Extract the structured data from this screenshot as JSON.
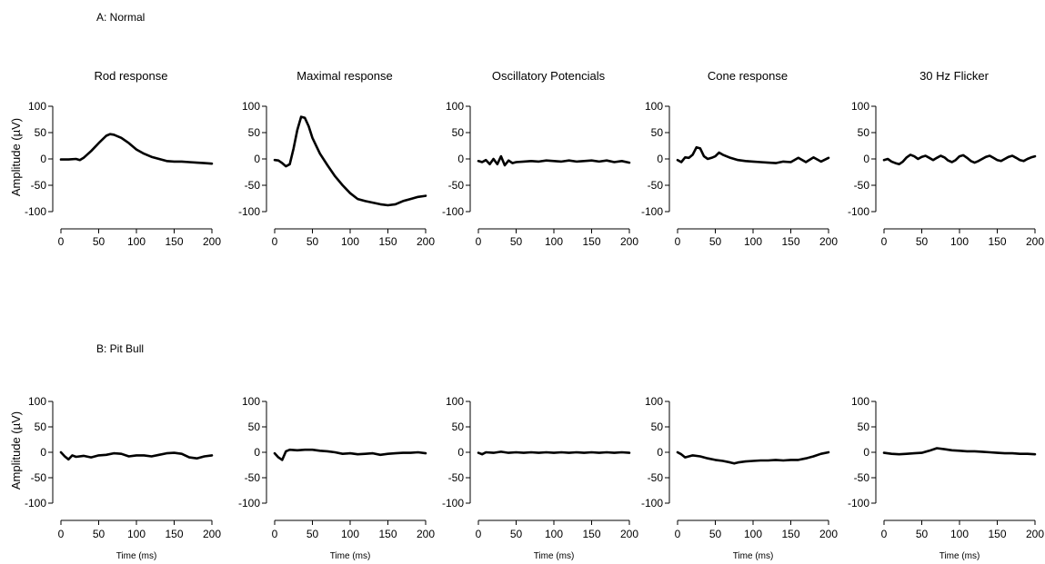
{
  "rows": [
    {
      "label": "A: Normal",
      "show_titles": true,
      "show_xlabel": false
    },
    {
      "label": "B: Pit Bull",
      "show_titles": false,
      "show_xlabel": true
    }
  ],
  "panel_titles": [
    "Rod response",
    "Maximal response",
    "Oscillatory Potencials",
    "Cone response",
    "30 Hz Flicker"
  ],
  "axes": {
    "ylabel": "Amplitude (µV)",
    "xlabel": "Time (ms)",
    "xlim": [
      0,
      200
    ],
    "ylim": [
      -100,
      100
    ],
    "xticks": [
      0,
      50,
      100,
      150,
      200
    ],
    "yticks": [
      100,
      50,
      0,
      -50,
      -100
    ]
  },
  "line_color": "#000000",
  "chart_data": [
    {
      "type": "line",
      "row": "A: Normal",
      "title": "Rod response",
      "x": [
        0,
        10,
        20,
        25,
        30,
        40,
        50,
        60,
        65,
        70,
        80,
        90,
        100,
        110,
        120,
        130,
        140,
        150,
        160,
        170,
        180,
        190,
        200
      ],
      "y": [
        -1,
        -1,
        0,
        -2,
        2,
        15,
        30,
        44,
        47,
        46,
        40,
        30,
        18,
        10,
        4,
        0,
        -4,
        -5,
        -5,
        -6,
        -7,
        -8,
        -9
      ]
    },
    {
      "type": "line",
      "row": "A: Normal",
      "title": "Maximal response",
      "x": [
        0,
        5,
        10,
        15,
        20,
        25,
        30,
        35,
        40,
        45,
        50,
        60,
        70,
        80,
        90,
        100,
        110,
        120,
        130,
        140,
        150,
        160,
        170,
        180,
        190,
        200
      ],
      "y": [
        -2,
        -3,
        -8,
        -14,
        -10,
        20,
        55,
        80,
        78,
        62,
        40,
        10,
        -12,
        -33,
        -50,
        -65,
        -76,
        -80,
        -83,
        -86,
        -88,
        -86,
        -80,
        -76,
        -72,
        -70
      ]
    },
    {
      "type": "line",
      "row": "A: Normal",
      "title": "Oscillatory Potencials",
      "x": [
        0,
        5,
        10,
        15,
        20,
        25,
        30,
        35,
        40,
        45,
        50,
        60,
        70,
        80,
        90,
        100,
        110,
        120,
        130,
        140,
        150,
        160,
        170,
        180,
        190,
        200
      ],
      "y": [
        -4,
        -6,
        -2,
        -10,
        0,
        -10,
        5,
        -12,
        -3,
        -8,
        -6,
        -5,
        -4,
        -5,
        -3,
        -4,
        -5,
        -3,
        -5,
        -4,
        -3,
        -5,
        -3,
        -6,
        -4,
        -7
      ]
    },
    {
      "type": "line",
      "row": "A: Normal",
      "title": "Cone response",
      "x": [
        0,
        5,
        10,
        15,
        20,
        25,
        30,
        35,
        40,
        45,
        50,
        55,
        60,
        70,
        80,
        90,
        100,
        110,
        120,
        130,
        140,
        150,
        160,
        170,
        180,
        190,
        200
      ],
      "y": [
        -2,
        -6,
        3,
        2,
        8,
        22,
        20,
        5,
        0,
        2,
        5,
        12,
        8,
        2,
        -2,
        -4,
        -5,
        -6,
        -7,
        -8,
        -5,
        -6,
        2,
        -6,
        3,
        -5,
        2
      ]
    },
    {
      "type": "line",
      "row": "A: Normal",
      "title": "30 Hz Flicker",
      "x": [
        0,
        5,
        10,
        15,
        20,
        25,
        30,
        35,
        40,
        45,
        50,
        55,
        60,
        65,
        70,
        75,
        80,
        85,
        90,
        95,
        100,
        105,
        110,
        115,
        120,
        125,
        130,
        135,
        140,
        145,
        150,
        155,
        160,
        165,
        170,
        175,
        180,
        185,
        190,
        195,
        200
      ],
      "y": [
        -2,
        0,
        -5,
        -8,
        -10,
        -5,
        3,
        8,
        5,
        0,
        4,
        6,
        2,
        -2,
        2,
        6,
        3,
        -3,
        -6,
        -2,
        5,
        7,
        2,
        -4,
        -7,
        -4,
        0,
        4,
        6,
        2,
        -2,
        -4,
        0,
        4,
        6,
        2,
        -2,
        -4,
        0,
        3,
        5
      ]
    },
    {
      "type": "line",
      "row": "B: Pit Bull",
      "title": "Rod response",
      "x": [
        0,
        5,
        10,
        15,
        20,
        30,
        40,
        50,
        60,
        70,
        80,
        90,
        100,
        110,
        120,
        130,
        140,
        150,
        160,
        170,
        180,
        190,
        200
      ],
      "y": [
        0,
        -8,
        -14,
        -6,
        -9,
        -7,
        -10,
        -6,
        -5,
        -2,
        -3,
        -8,
        -6,
        -6,
        -8,
        -5,
        -2,
        -1,
        -3,
        -10,
        -12,
        -8,
        -6
      ]
    },
    {
      "type": "line",
      "row": "B: Pit Bull",
      "title": "Maximal response",
      "x": [
        0,
        5,
        10,
        15,
        20,
        30,
        40,
        50,
        60,
        70,
        80,
        90,
        100,
        110,
        120,
        130,
        140,
        150,
        160,
        170,
        180,
        190,
        200
      ],
      "y": [
        -2,
        -10,
        -15,
        2,
        5,
        4,
        5,
        5,
        3,
        2,
        0,
        -3,
        -2,
        -4,
        -3,
        -2,
        -5,
        -3,
        -2,
        -1,
        -1,
        0,
        -2
      ]
    },
    {
      "type": "line",
      "row": "B: Pit Bull",
      "title": "Oscillatory Potencials",
      "x": [
        0,
        5,
        10,
        20,
        30,
        40,
        50,
        60,
        70,
        80,
        90,
        100,
        110,
        120,
        130,
        140,
        150,
        160,
        170,
        180,
        190,
        200
      ],
      "y": [
        -1,
        -4,
        0,
        -1,
        1,
        -1,
        0,
        -1,
        0,
        -1,
        0,
        -1,
        0,
        -1,
        0,
        -1,
        0,
        -1,
        0,
        -1,
        0,
        -1
      ]
    },
    {
      "type": "line",
      "row": "B: Pit Bull",
      "title": "Cone response",
      "x": [
        0,
        5,
        10,
        20,
        30,
        40,
        50,
        60,
        70,
        75,
        80,
        90,
        100,
        110,
        120,
        130,
        140,
        150,
        160,
        170,
        180,
        190,
        200
      ],
      "y": [
        0,
        -4,
        -10,
        -6,
        -8,
        -12,
        -15,
        -17,
        -20,
        -22,
        -20,
        -18,
        -17,
        -16,
        -16,
        -15,
        -16,
        -15,
        -15,
        -12,
        -8,
        -3,
        0
      ]
    },
    {
      "type": "line",
      "row": "B: Pit Bull",
      "title": "30 Hz Flicker",
      "x": [
        0,
        10,
        20,
        30,
        40,
        50,
        60,
        70,
        80,
        90,
        100,
        110,
        120,
        130,
        140,
        150,
        160,
        170,
        180,
        190,
        200
      ],
      "y": [
        -1,
        -3,
        -4,
        -3,
        -2,
        -1,
        3,
        8,
        6,
        4,
        3,
        2,
        2,
        1,
        0,
        -1,
        -2,
        -2,
        -3,
        -3,
        -4
      ]
    }
  ]
}
